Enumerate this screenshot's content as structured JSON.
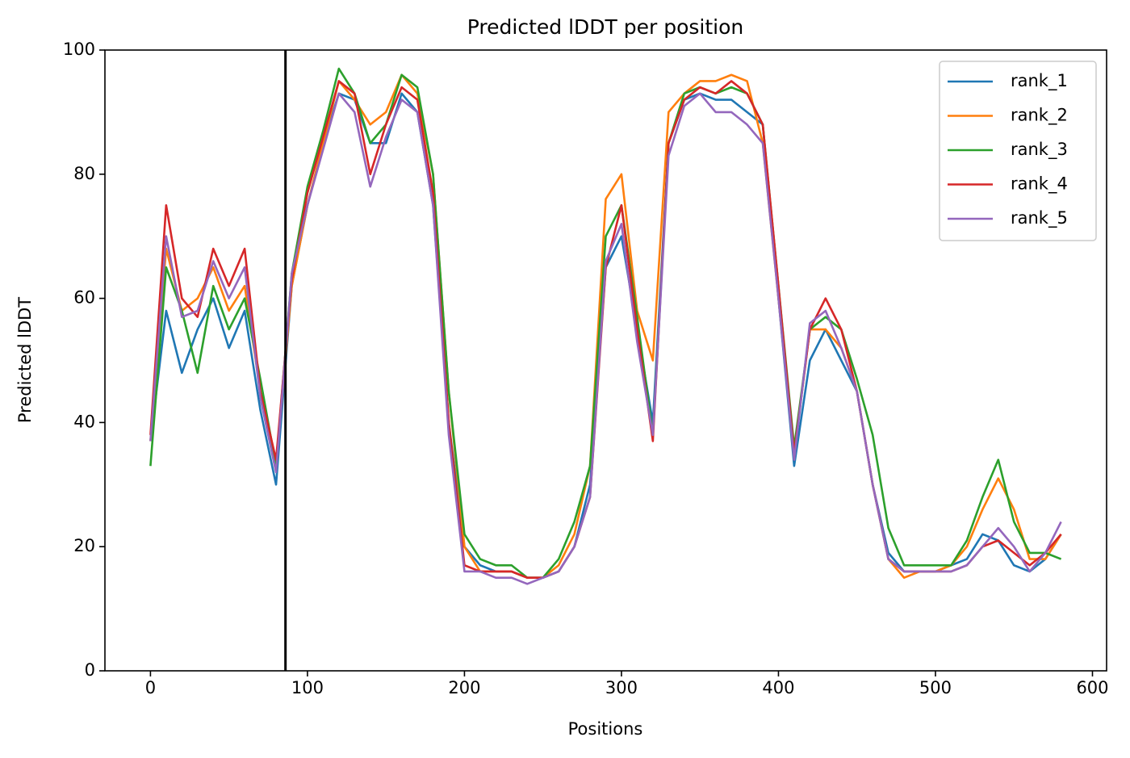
{
  "chart_data": {
    "type": "line",
    "title": "Predicted lDDT per position",
    "xlabel": "Positions",
    "ylabel": "Predicted lDDT",
    "x": [
      0,
      10,
      20,
      30,
      40,
      50,
      60,
      70,
      80,
      90,
      100,
      110,
      120,
      130,
      140,
      150,
      160,
      170,
      180,
      190,
      200,
      210,
      220,
      230,
      240,
      250,
      260,
      270,
      280,
      290,
      300,
      310,
      320,
      330,
      340,
      350,
      360,
      370,
      380,
      390,
      400,
      410,
      420,
      430,
      440,
      450,
      460,
      470,
      480,
      490,
      500,
      510,
      520,
      530,
      540,
      550,
      560,
      570,
      580
    ],
    "series": [
      {
        "name": "rank_1",
        "color": "#1f77b4",
        "values": [
          37,
          58,
          48,
          55,
          60,
          52,
          58,
          42,
          30,
          62,
          75,
          85,
          93,
          92,
          85,
          85,
          93,
          90,
          75,
          40,
          20,
          17,
          16,
          16,
          15,
          15,
          16,
          20,
          30,
          65,
          70,
          55,
          40,
          85,
          92,
          93,
          92,
          92,
          90,
          88,
          60,
          33,
          50,
          55,
          50,
          45,
          30,
          19,
          16,
          16,
          16,
          17,
          18,
          22,
          21,
          17,
          16,
          18,
          22
        ]
      },
      {
        "name": "rank_2",
        "color": "#ff7f0e",
        "values": [
          37,
          68,
          58,
          60,
          65,
          58,
          62,
          45,
          33,
          62,
          75,
          85,
          95,
          92,
          88,
          90,
          96,
          93,
          80,
          45,
          20,
          16,
          16,
          16,
          15,
          15,
          17,
          22,
          33,
          76,
          80,
          58,
          50,
          90,
          93,
          95,
          95,
          96,
          95,
          85,
          60,
          35,
          55,
          55,
          52,
          45,
          30,
          18,
          15,
          16,
          16,
          17,
          20,
          26,
          31,
          26,
          18,
          18,
          22
        ]
      },
      {
        "name": "rank_3",
        "color": "#2ca02c",
        "values": [
          33,
          65,
          58,
          48,
          62,
          55,
          60,
          47,
          33,
          64,
          78,
          87,
          97,
          93,
          85,
          88,
          96,
          94,
          80,
          45,
          22,
          18,
          17,
          17,
          15,
          15,
          18,
          24,
          33,
          70,
          75,
          57,
          38,
          85,
          93,
          94,
          93,
          94,
          93,
          88,
          62,
          36,
          55,
          57,
          55,
          47,
          38,
          23,
          17,
          17,
          17,
          17,
          21,
          28,
          34,
          24,
          19,
          19,
          18
        ]
      },
      {
        "name": "rank_4",
        "color": "#d62728",
        "values": [
          38,
          75,
          60,
          57,
          68,
          62,
          68,
          45,
          34,
          63,
          77,
          86,
          95,
          93,
          80,
          88,
          94,
          92,
          77,
          40,
          17,
          16,
          16,
          16,
          15,
          15,
          16,
          20,
          28,
          65,
          75,
          55,
          37,
          85,
          92,
          94,
          93,
          95,
          93,
          88,
          62,
          35,
          55,
          60,
          55,
          45,
          30,
          18,
          16,
          16,
          16,
          16,
          17,
          20,
          21,
          19,
          17,
          19,
          22
        ]
      },
      {
        "name": "rank_5",
        "color": "#9467bd",
        "values": [
          37,
          70,
          57,
          58,
          66,
          60,
          65,
          44,
          32,
          64,
          75,
          84,
          93,
          90,
          78,
          86,
          92,
          90,
          75,
          38,
          16,
          16,
          15,
          15,
          14,
          15,
          16,
          20,
          28,
          66,
          72,
          53,
          38,
          83,
          91,
          93,
          90,
          90,
          88,
          85,
          60,
          34,
          56,
          58,
          52,
          45,
          30,
          18,
          16,
          16,
          16,
          16,
          17,
          20,
          23,
          20,
          16,
          19,
          24
        ]
      }
    ],
    "vline": 86,
    "vline_color": "#000000",
    "xlim": [
      -29,
      609
    ],
    "xticks": [
      0,
      100,
      200,
      300,
      400,
      500,
      600
    ],
    "ylim": [
      0,
      100
    ],
    "yticks": [
      0,
      20,
      40,
      60,
      80,
      100
    ],
    "grid": false,
    "legend": "upper right"
  }
}
